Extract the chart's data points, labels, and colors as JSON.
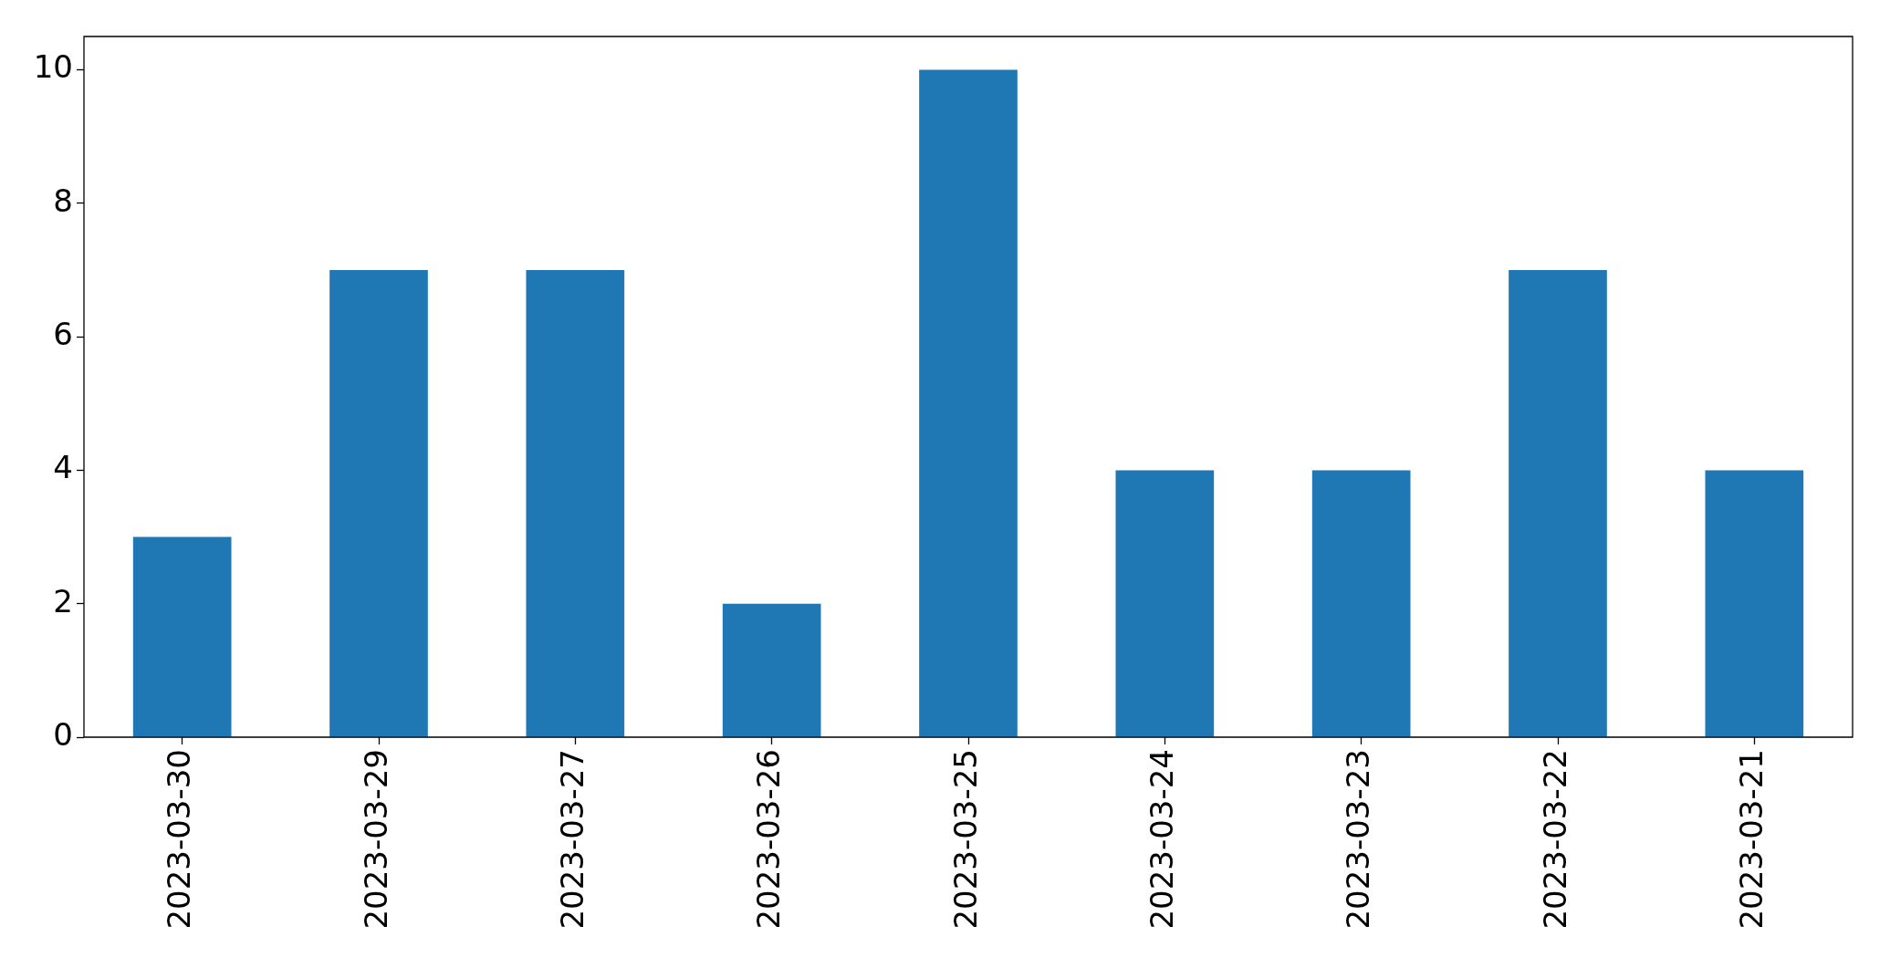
{
  "chart_data": {
    "type": "bar",
    "categories": [
      "2023-03-30",
      "2023-03-29",
      "2023-03-27",
      "2023-03-26",
      "2023-03-25",
      "2023-03-24",
      "2023-03-23",
      "2023-03-22",
      "2023-03-21"
    ],
    "values": [
      3,
      7,
      7,
      2,
      10,
      4,
      4,
      7,
      4
    ],
    "color": "#1f77b4",
    "ylim": [
      0,
      10.5
    ],
    "yticks": [
      0,
      2,
      4,
      6,
      8,
      10
    ],
    "grid": false,
    "legend": false
  }
}
